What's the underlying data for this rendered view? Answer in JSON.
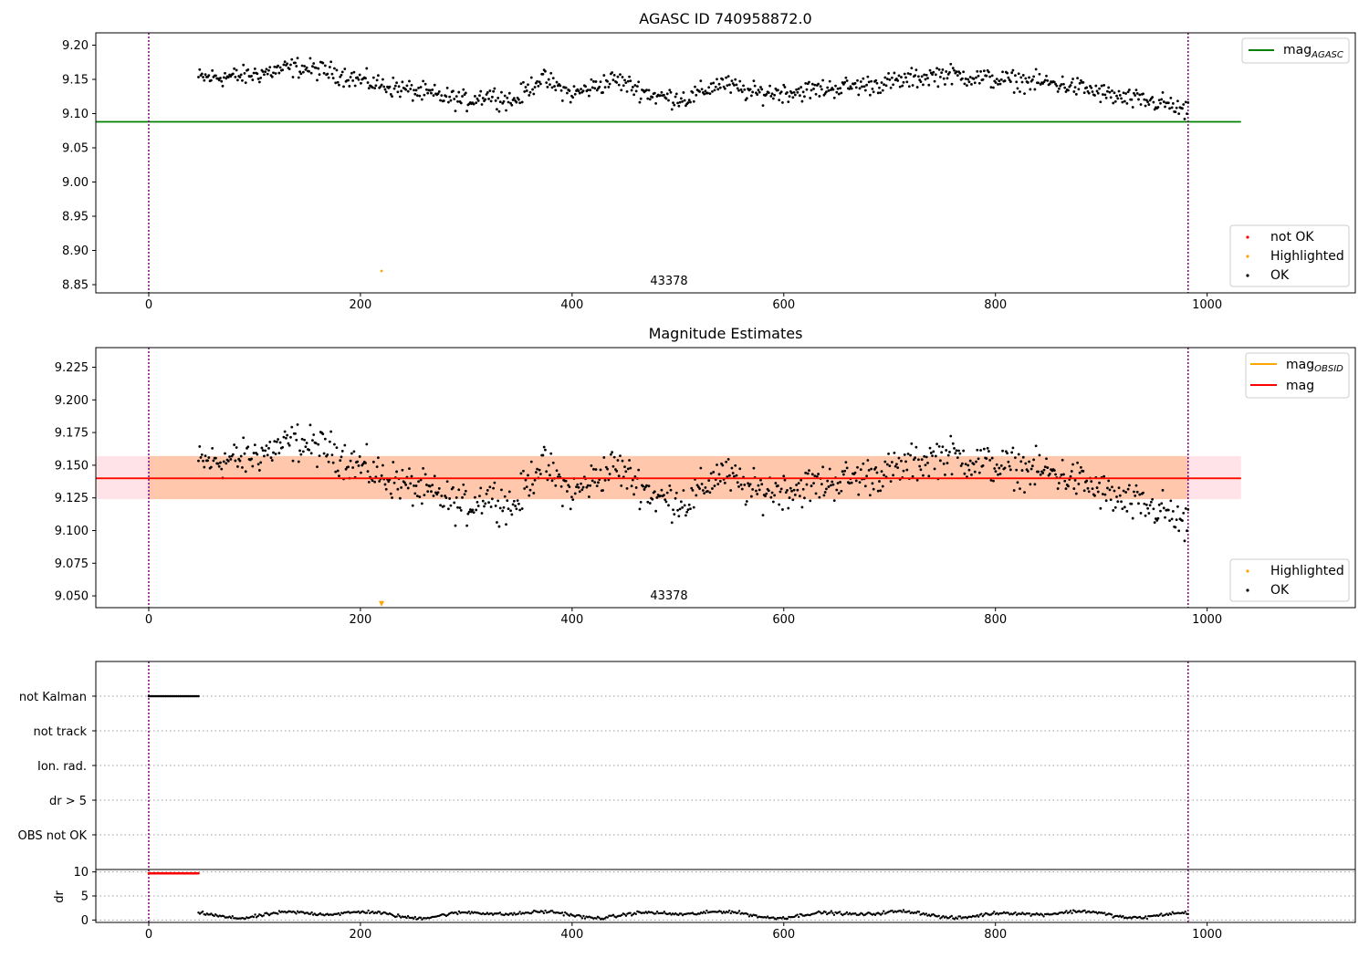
{
  "chart_data": [
    {
      "type": "scatter",
      "title": "AGASC ID 740958872.0",
      "xlim": [
        -50,
        1140
      ],
      "ylim": [
        8.838,
        9.218
      ],
      "xticks": [
        0,
        200,
        400,
        600,
        800,
        1000
      ],
      "yticks": [
        9.2,
        9.15,
        9.1,
        9.05,
        9.0,
        8.95,
        8.9,
        8.85
      ],
      "ytick_labels": [
        "9.20",
        "9.15",
        "9.10",
        "9.05",
        "9.00",
        "8.95",
        "8.90",
        "8.85"
      ],
      "vlines": [
        0,
        982
      ],
      "hlines": [
        {
          "name": "magAGASC",
          "y": 9.088,
          "x0": -50,
          "x1": 1032,
          "color": "#008000"
        }
      ],
      "obsid_label": {
        "text": "43378",
        "x": 491
      },
      "highlighted_points": [
        {
          "x": 220,
          "y": 8.87
        }
      ],
      "ok_range": {
        "x_start": 47,
        "x_end": 982,
        "n_points": 860
      },
      "colors": {
        "ok": "#000000",
        "highlighted": "#FFA500",
        "not_ok": "#FF0000",
        "vline": "#800080"
      },
      "legends": {
        "top_right": [
          {
            "label": "mag",
            "sub": "AGASC",
            "color": "#008000",
            "kind": "line"
          }
        ],
        "bottom_right": [
          {
            "label": "not OK",
            "color": "#FF0000",
            "kind": "marker"
          },
          {
            "label": "Highlighted",
            "color": "#FFA500",
            "kind": "marker"
          },
          {
            "label": "OK",
            "color": "#000000",
            "kind": "marker"
          }
        ]
      }
    },
    {
      "type": "scatter",
      "title": "Magnitude Estimates",
      "xlim": [
        -50,
        1140
      ],
      "ylim": [
        9.041,
        9.24
      ],
      "xticks": [
        0,
        200,
        400,
        600,
        800,
        1000
      ],
      "yticks": [
        9.225,
        9.2,
        9.175,
        9.15,
        9.125,
        9.1,
        9.075,
        9.05
      ],
      "ytick_labels": [
        "9.225",
        "9.200",
        "9.175",
        "9.150",
        "9.125",
        "9.100",
        "9.075",
        "9.050"
      ],
      "vlines": [
        0,
        982
      ],
      "hlines": [
        {
          "name": "magOBSID",
          "y": 9.14,
          "x0": -50,
          "x1": 1032,
          "color": "#FFA500"
        },
        {
          "name": "mag",
          "y": 9.14,
          "x0": -50,
          "x1": 1032,
          "color": "#FF0000"
        }
      ],
      "bands": [
        {
          "y0": 9.124,
          "y1": 9.157,
          "x0": -50,
          "x1": 1032,
          "color": "#FFC0CB"
        },
        {
          "y0": 9.124,
          "y1": 9.157,
          "x0": 0,
          "x1": 982,
          "color": "#FFB07A"
        }
      ],
      "obsid_label": {
        "text": "43378",
        "x": 491
      },
      "highlighted_points": [
        {
          "x": 220,
          "y": 9.044
        }
      ],
      "ok_range": {
        "x_start": 47,
        "x_end": 982,
        "n_points": 860
      },
      "legends": {
        "top_right": [
          {
            "label": "mag",
            "sub": "OBSID",
            "color": "#FFA500",
            "kind": "line"
          },
          {
            "label": "mag",
            "sub": "",
            "color": "#FF0000",
            "kind": "line"
          }
        ],
        "bottom_right": [
          {
            "label": "Highlighted",
            "color": "#FFA500",
            "kind": "marker"
          },
          {
            "label": "OK",
            "color": "#000000",
            "kind": "marker"
          }
        ]
      }
    },
    {
      "type": "scatter",
      "title": "",
      "xlim": [
        -50,
        1140
      ],
      "categories": [
        "not Kalman",
        "not track",
        "Ion. rad.",
        "dr > 5",
        "OBS not OK"
      ],
      "flags": [
        {
          "category": "not Kalman",
          "x_start": 0,
          "x_end": 47
        }
      ],
      "vlines": [
        0,
        982
      ]
    },
    {
      "type": "scatter",
      "title": "",
      "xlim": [
        -50,
        1140
      ],
      "ylim": [
        -0.5,
        10.5
      ],
      "xticks": [
        0,
        200,
        400,
        600,
        800,
        1000
      ],
      "yticks": [
        10,
        5,
        0
      ],
      "ylabel": "dr",
      "red_points": {
        "x_start": 0,
        "x_end": 47,
        "y": 9.7
      },
      "ok_range": {
        "x_start": 47,
        "x_end": 982
      },
      "vlines": [
        0,
        982
      ]
    }
  ]
}
